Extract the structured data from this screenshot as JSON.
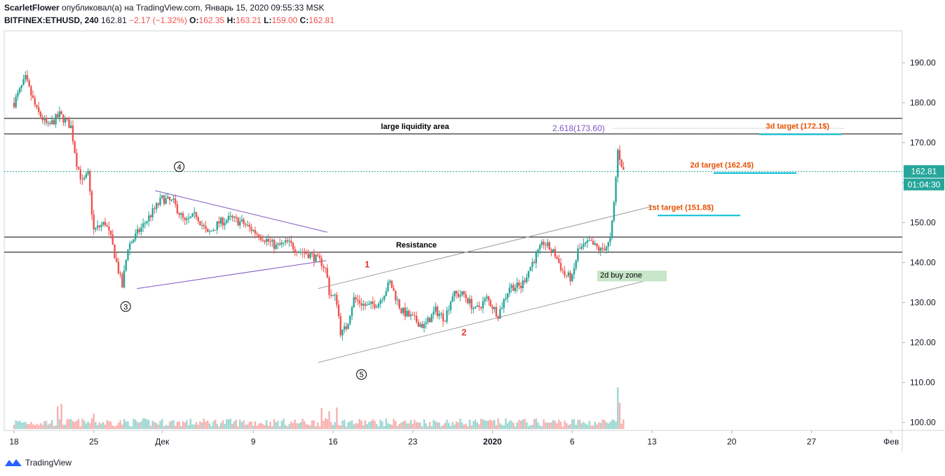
{
  "header": {
    "author": "ScarletFlower",
    "published_text": "опубликовал(а) на TradingView.com, Январь 15, 2020 09:55:33 MSK",
    "symbol": "BITFINEX:ETHUSD, 240",
    "last": "162.81",
    "change": "−2.17 (−1.32%)",
    "open_label": "O:",
    "open": "162.35",
    "high_label": "H:",
    "high": "163.21",
    "low_label": "L:",
    "low": "159.00",
    "close_label": "C:",
    "close": "162.81"
  },
  "footer": {
    "brand": "TradingView",
    "logo_icon": "tradingview-logo-icon"
  },
  "colors": {
    "up": "#26a69a",
    "down": "#ef5350",
    "trend": "#7e57c2",
    "target_line": "#00bcd4",
    "target_text": "#e65100",
    "buy_zone": "#c8e6c9"
  },
  "chart_data": {
    "type": "candlestick",
    "ylim": [
      98,
      198
    ],
    "y_ticks": [
      "190.00",
      "180.00",
      "170.00",
      "160.00",
      "150.00",
      "140.00",
      "130.00",
      "120.00",
      "110.00",
      "100.00"
    ],
    "y_tick_values": [
      190,
      180,
      170,
      160,
      150,
      140,
      130,
      120,
      110,
      100
    ],
    "x_ticks": [
      "18",
      "25",
      "Дек",
      "9",
      "16",
      "23",
      "2020",
      "6",
      "13",
      "20",
      "27",
      "Фев"
    ],
    "last_price_label": "162.81",
    "countdown_label": "01:04:30",
    "candle_anchors": [
      {
        "d": 0,
        "p": 180
      },
      {
        "d": 1,
        "p": 186
      },
      {
        "d": 2,
        "p": 178
      },
      {
        "d": 3,
        "p": 174
      },
      {
        "d": 4,
        "p": 177
      },
      {
        "d": 5,
        "p": 174
      },
      {
        "d": 5.5,
        "p": 165
      },
      {
        "d": 6,
        "p": 160
      },
      {
        "d": 6.5,
        "p": 162
      },
      {
        "d": 7,
        "p": 148
      },
      {
        "d": 8,
        "p": 150
      },
      {
        "d": 8.5,
        "p": 146
      },
      {
        "d": 9,
        "p": 140
      },
      {
        "d": 9.5,
        "p": 134
      },
      {
        "d": 10,
        "p": 144
      },
      {
        "d": 11,
        "p": 148
      },
      {
        "d": 12,
        "p": 152
      },
      {
        "d": 13,
        "p": 156
      },
      {
        "d": 14,
        "p": 155
      },
      {
        "d": 15,
        "p": 150
      },
      {
        "d": 16,
        "p": 152
      },
      {
        "d": 17,
        "p": 147
      },
      {
        "d": 18,
        "p": 150
      },
      {
        "d": 19,
        "p": 151
      },
      {
        "d": 20,
        "p": 150
      },
      {
        "d": 21,
        "p": 148
      },
      {
        "d": 22,
        "p": 146
      },
      {
        "d": 23,
        "p": 144
      },
      {
        "d": 24,
        "p": 145
      },
      {
        "d": 25,
        "p": 143
      },
      {
        "d": 26,
        "p": 142
      },
      {
        "d": 27,
        "p": 140
      },
      {
        "d": 27.4,
        "p": 138
      },
      {
        "d": 27.7,
        "p": 132
      },
      {
        "d": 28.3,
        "p": 131
      },
      {
        "d": 28.7,
        "p": 122
      },
      {
        "d": 29.2,
        "p": 124
      },
      {
        "d": 29.8,
        "p": 131
      },
      {
        "d": 31,
        "p": 129
      },
      {
        "d": 32,
        "p": 130
      },
      {
        "d": 33,
        "p": 135
      },
      {
        "d": 34,
        "p": 128
      },
      {
        "d": 35,
        "p": 126
      },
      {
        "d": 36,
        "p": 124
      },
      {
        "d": 37,
        "p": 128
      },
      {
        "d": 37.8,
        "p": 126
      },
      {
        "d": 38.5,
        "p": 132
      },
      {
        "d": 39.5,
        "p": 132
      },
      {
        "d": 40.5,
        "p": 128
      },
      {
        "d": 41.5,
        "p": 131
      },
      {
        "d": 42.5,
        "p": 127
      },
      {
        "d": 43.5,
        "p": 134
      },
      {
        "d": 44.5,
        "p": 134
      },
      {
        "d": 45.5,
        "p": 140
      },
      {
        "d": 46.5,
        "p": 145
      },
      {
        "d": 47.5,
        "p": 142
      },
      {
        "d": 48.3,
        "p": 137
      },
      {
        "d": 49,
        "p": 136
      },
      {
        "d": 49.5,
        "p": 143
      },
      {
        "d": 50.5,
        "p": 145
      },
      {
        "d": 51.5,
        "p": 143
      },
      {
        "d": 52.3,
        "p": 145
      },
      {
        "d": 52.6,
        "p": 152
      },
      {
        "d": 53,
        "p": 168
      },
      {
        "d": 53.3,
        "p": 165
      },
      {
        "d": 53.5,
        "p": 162.8
      }
    ],
    "volume_max": 100,
    "volume_spikes": [
      {
        "d": 3.8,
        "v": 38
      },
      {
        "d": 4.2,
        "v": 42
      },
      {
        "d": 7,
        "v": 26
      },
      {
        "d": 27,
        "v": 35
      },
      {
        "d": 27.6,
        "v": 30
      },
      {
        "d": 28.4,
        "v": 36
      },
      {
        "d": 53,
        "v": 70
      },
      {
        "d": 53.2,
        "v": 44
      }
    ],
    "annotations": {
      "large_liquidity": {
        "label": "large liquidity area",
        "from": 172.2,
        "to": 176.1
      },
      "resistance": {
        "label": "Resistance",
        "from": 142.6,
        "to": 146.4
      },
      "fib": {
        "label": "2.618(173.60)",
        "price": 173.6
      },
      "targets": [
        {
          "label": "3d target (172.1$)",
          "price": 172.1,
          "d_from": 42.2,
          "d_to": 45.6
        },
        {
          "label": "2d target (162.4$)",
          "price": 162.4,
          "d_from": 35.7,
          "d_to": 40.9
        },
        {
          "label": "1st target (151.8$)",
          "price": 151.8,
          "d_from": 35.2,
          "d_to": 38.6
        }
      ],
      "buy_zone": {
        "label": "2d buy zone",
        "top": 138,
        "bottom": 135.3,
        "d_from": 51.2,
        "d_to": 57.3
      },
      "wave_labels": [
        {
          "label": "3",
          "d": 9.8,
          "price": 129.0
        },
        {
          "label": "4",
          "d": 14.5,
          "price": 164.0
        },
        {
          "label": "5",
          "d": 30.5,
          "price": 112.0
        }
      ],
      "abc_labels": [
        {
          "label": "1",
          "d": 31.0,
          "price": 139.5
        },
        {
          "label": "2",
          "d": 39.5,
          "price": 122.5
        }
      ],
      "triangle": [
        {
          "d1": 10.8,
          "p1": 133.5,
          "d2": 27.4,
          "p2": 140.5
        },
        {
          "d1": 12.4,
          "p1": 158.0,
          "d2": 27.5,
          "p2": 147.6
        }
      ],
      "channel": [
        {
          "d1": 26.7,
          "p1": 133.5,
          "d2": 56.2,
          "p2": 154.2
        },
        {
          "d1": 26.7,
          "p1": 115.0,
          "d2": 56.2,
          "p2": 136.0
        }
      ]
    }
  }
}
